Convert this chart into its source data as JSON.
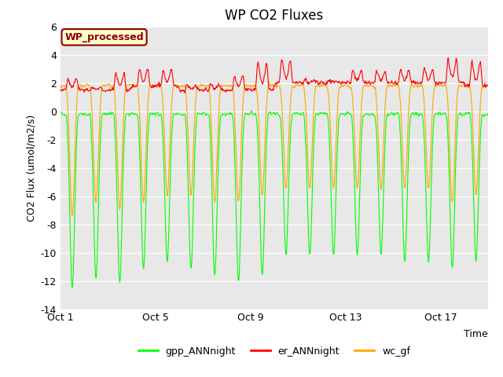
{
  "title": "WP CO2 Fluxes",
  "xlabel": "Time",
  "ylabel": "CO2 Flux (umol/m2/s)",
  "ylim": [
    -14,
    6
  ],
  "yticks": [
    -14,
    -12,
    -10,
    -8,
    -6,
    -4,
    -2,
    0,
    2,
    4,
    6
  ],
  "xtick_labels": [
    "Oct 1",
    "Oct 5",
    "Oct 9",
    "Oct 13",
    "Oct 17"
  ],
  "xtick_positions": [
    0,
    4,
    8,
    12,
    16
  ],
  "n_days": 18,
  "pts_per_day": 48,
  "gpp_color": "#00ff00",
  "er_color": "#ff0000",
  "wc_color": "#ffa500",
  "fig_bg_color": "#ffffff",
  "plot_bg_color": "#e8e8e8",
  "annotation_text": "WP_processed",
  "annotation_bg": "#ffffcc",
  "annotation_border": "#8b0000",
  "legend_entries": [
    "gpp_ANNnight",
    "er_ANNnight",
    "wc_gf"
  ],
  "title_fontsize": 12,
  "label_fontsize": 9,
  "tick_fontsize": 9,
  "line_width": 0.8
}
